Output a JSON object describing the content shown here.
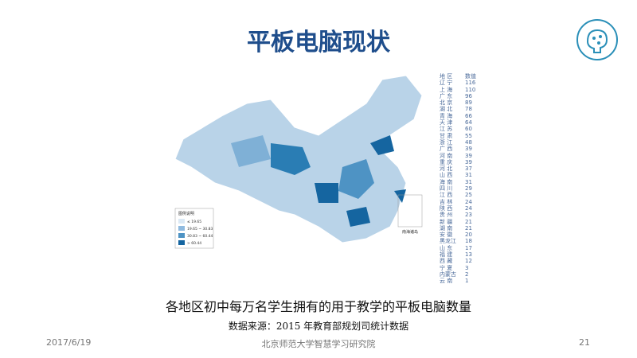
{
  "header": {
    "title": "平板电脑现状"
  },
  "map": {
    "legend_title": "图例说明",
    "legend_items": [
      "≤ 19.65",
      "19.65 ~ 30.83",
      "30.83 ~ 60.44",
      "> 60.44"
    ],
    "inset_label": "南海诸岛"
  },
  "table": {
    "columns": [
      "地 区",
      "数值"
    ],
    "rows": [
      [
        "辽 宁",
        "116"
      ],
      [
        "上 海",
        "110"
      ],
      [
        "广 东",
        "96"
      ],
      [
        "北 京",
        "89"
      ],
      [
        "湖 北",
        "78"
      ],
      [
        "青 海",
        "66"
      ],
      [
        "天 津",
        "64"
      ],
      [
        "江 苏",
        "60"
      ],
      [
        "甘 肃",
        "55"
      ],
      [
        "浙 江",
        "48"
      ],
      [
        "广 西",
        "39"
      ],
      [
        "河 南",
        "39"
      ],
      [
        "重 庆",
        "39"
      ],
      [
        "河 北",
        "37"
      ],
      [
        "山 西",
        "31"
      ],
      [
        "海 南",
        "31"
      ],
      [
        "四 川",
        "29"
      ],
      [
        "江 西",
        "25"
      ],
      [
        "吉 林",
        "24"
      ],
      [
        "陕 西",
        "24"
      ],
      [
        "贵 州",
        "23"
      ],
      [
        "新 疆",
        "21"
      ],
      [
        "湖 南",
        "21"
      ],
      [
        "安 徽",
        "20"
      ],
      [
        "黑龙江",
        "18"
      ],
      [
        "山 东",
        "17"
      ],
      [
        "福 建",
        "13"
      ],
      [
        "西 藏",
        "12"
      ],
      [
        "宁 夏",
        "3"
      ],
      [
        "内蒙古",
        "2"
      ],
      [
        "云 南",
        "1"
      ]
    ]
  },
  "caption": "各地区初中每万名学生拥有的用于教学的平板电脑数量",
  "source": "数据来源：2015 年教育部规划司统计数据",
  "footer": {
    "date": "2017/6/19",
    "organization": "北京师范大学智慧学习研究院",
    "page": "21"
  }
}
